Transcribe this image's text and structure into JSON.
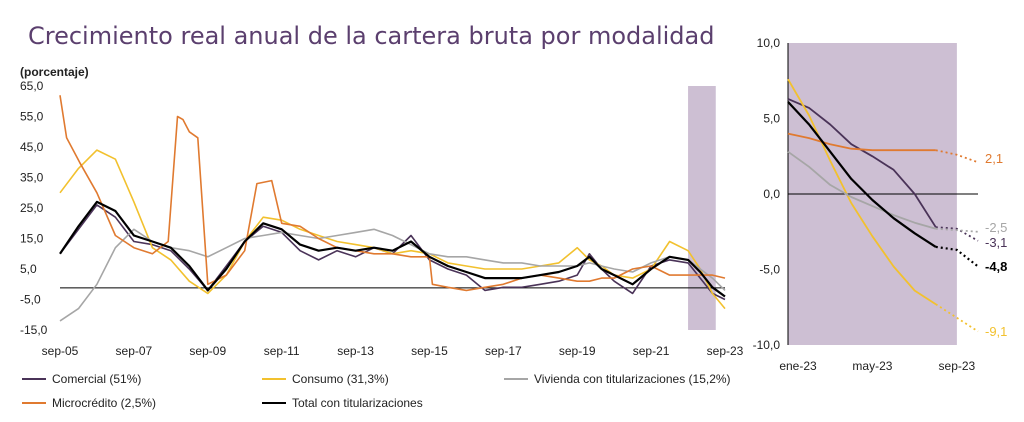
{
  "title": "Crecimiento real anual de la cartera bruta por modalidad",
  "chart_data": [
    {
      "type": "line",
      "ylabel": "(porcentaje)",
      "ylim": [
        -15,
        65
      ],
      "yticks": [
        "65,0",
        "55,0",
        "45,0",
        "35,0",
        "25,0",
        "15,0",
        "5,0",
        "-5,0",
        "-15,0"
      ],
      "xticks": [
        "sep-05",
        "sep-07",
        "sep-09",
        "sep-11",
        "sep-13",
        "sep-15",
        "sep-17",
        "sep-19",
        "sep-21",
        "sep-23"
      ],
      "xrange": [
        2005.67,
        2023.67
      ],
      "shaded_period": [
        2022.67,
        2023.42
      ],
      "series": [
        {
          "name": "Comercial (51%)",
          "color": "#4a3358",
          "x": [
            2005.67,
            2006.17,
            2006.67,
            2007.17,
            2007.67,
            2008.17,
            2008.67,
            2009.17,
            2009.67,
            2010.17,
            2010.67,
            2011.17,
            2011.67,
            2012.17,
            2012.67,
            2013.17,
            2013.67,
            2014.17,
            2014.67,
            2015.17,
            2015.67,
            2016.17,
            2016.67,
            2017.17,
            2017.67,
            2018.17,
            2018.67,
            2019.17,
            2019.67,
            2020.0,
            2020.33,
            2020.67,
            2021.17,
            2021.67,
            2022.17,
            2022.67,
            2023.0,
            2023.33,
            2023.67
          ],
          "y": [
            10,
            18,
            26,
            22,
            14,
            13,
            11,
            5,
            -2,
            6,
            14,
            19,
            17,
            11,
            8,
            11,
            9,
            12,
            10,
            16,
            8,
            5,
            3,
            -2,
            -1,
            -1,
            0,
            1,
            3,
            10,
            5,
            1,
            -3,
            6,
            8,
            7,
            2,
            -3,
            -5
          ]
        },
        {
          "name": "Consumo (31,3%)",
          "color": "#f2c12e",
          "x": [
            2005.67,
            2006.17,
            2006.67,
            2007.17,
            2007.67,
            2008.17,
            2008.67,
            2009.17,
            2009.67,
            2010.17,
            2010.67,
            2011.17,
            2011.67,
            2012.17,
            2012.67,
            2013.17,
            2013.67,
            2014.17,
            2014.67,
            2015.17,
            2015.67,
            2016.17,
            2016.67,
            2017.17,
            2017.67,
            2018.17,
            2018.67,
            2019.17,
            2019.67,
            2020.0,
            2020.33,
            2020.67,
            2021.17,
            2021.67,
            2022.17,
            2022.67,
            2023.0,
            2023.33,
            2023.67
          ],
          "y": [
            30,
            38,
            44,
            41,
            27,
            12,
            8,
            1,
            -3,
            3,
            14,
            22,
            21,
            18,
            16,
            14,
            13,
            12,
            10,
            11,
            10,
            7,
            6,
            5,
            5,
            5,
            6,
            7,
            12,
            8,
            6,
            3,
            2,
            5,
            14,
            11,
            5,
            -3,
            -8
          ]
        },
        {
          "name": "Vivienda con titularizaciones (15,2%)",
          "color": "#a6a6a6",
          "x": [
            2005.67,
            2006.17,
            2006.67,
            2007.17,
            2007.67,
            2008.17,
            2008.67,
            2009.17,
            2009.67,
            2010.17,
            2010.67,
            2011.17,
            2011.67,
            2012.17,
            2012.67,
            2013.17,
            2013.67,
            2014.17,
            2014.67,
            2015.17,
            2015.67,
            2016.17,
            2016.67,
            2017.17,
            2017.67,
            2018.17,
            2018.67,
            2019.17,
            2019.67,
            2020.0,
            2020.33,
            2020.67,
            2021.17,
            2021.67,
            2022.17,
            2022.67,
            2023.0,
            2023.33,
            2023.67
          ],
          "y": [
            -12,
            -8,
            0,
            12,
            18,
            14,
            12,
            11,
            9,
            12,
            15,
            16,
            17,
            16,
            15,
            16,
            17,
            18,
            16,
            13,
            10,
            9,
            9,
            8,
            7,
            7,
            6,
            6,
            6,
            7,
            6,
            5,
            4,
            7,
            9,
            8,
            5,
            2,
            -2
          ]
        },
        {
          "name": "Microcrédito (2,5%)",
          "color": "#e07a30",
          "x": [
            2005.67,
            2005.85,
            2006.2,
            2006.67,
            2007.17,
            2007.67,
            2008.17,
            2008.6,
            2008.85,
            2009.0,
            2009.17,
            2009.4,
            2009.67,
            2010.17,
            2010.67,
            2011.0,
            2011.4,
            2011.67,
            2012.17,
            2012.67,
            2013.17,
            2013.67,
            2014.17,
            2014.67,
            2015.17,
            2015.67,
            2015.75,
            2016.17,
            2016.67,
            2017.17,
            2017.67,
            2018.17,
            2018.67,
            2019.17,
            2019.67,
            2020.0,
            2020.33,
            2020.67,
            2021.17,
            2021.67,
            2022.17,
            2022.67,
            2023.0,
            2023.33,
            2023.67
          ],
          "y": [
            62,
            48,
            40,
            30,
            16,
            12,
            10,
            14,
            55,
            54,
            50,
            48,
            0,
            3,
            11,
            33,
            34,
            20,
            19,
            15,
            12,
            11,
            10,
            10,
            9,
            9,
            0,
            -1,
            -2,
            -1,
            0,
            2,
            3,
            2,
            1,
            1,
            2,
            2,
            5,
            6,
            3,
            3,
            3,
            3,
            2
          ]
        },
        {
          "name": "Total con titularizaciones",
          "color": "#000000",
          "x": [
            2005.67,
            2006.17,
            2006.67,
            2007.17,
            2007.67,
            2008.17,
            2008.67,
            2009.17,
            2009.67,
            2010.17,
            2010.67,
            2011.17,
            2011.67,
            2012.17,
            2012.67,
            2013.17,
            2013.67,
            2014.17,
            2014.67,
            2015.17,
            2015.67,
            2016.17,
            2016.67,
            2017.17,
            2017.67,
            2018.17,
            2018.67,
            2019.17,
            2019.67,
            2020.0,
            2020.33,
            2020.67,
            2021.17,
            2021.67,
            2022.17,
            2022.67,
            2023.0,
            2023.33,
            2023.67
          ],
          "y": [
            10,
            19,
            27,
            24,
            16,
            14,
            12,
            6,
            -2,
            5,
            14,
            20,
            18,
            13,
            11,
            12,
            11,
            12,
            11,
            14,
            9,
            6,
            4,
            2,
            2,
            2,
            3,
            4,
            6,
            9,
            5,
            3,
            0,
            5,
            9,
            8,
            4,
            -1,
            -4
          ]
        }
      ]
    },
    {
      "type": "line",
      "ylim": [
        -10,
        10
      ],
      "yticks": [
        "10,0",
        "5,0",
        "0,0",
        "-5,0",
        "-10,0"
      ],
      "xticks": [
        "ene-23",
        "may-23",
        "sep-23"
      ],
      "xrange": [
        0,
        9
      ],
      "shaded_period": [
        0,
        8
      ],
      "end_labels": [
        {
          "text": "2,1",
          "value": 2.1,
          "color": "#e07a30"
        },
        {
          "text": "-2,5",
          "value": -2.5,
          "color": "#a6a6a6"
        },
        {
          "text": "-3,1",
          "value": -3.1,
          "color": "#4a3358"
        },
        {
          "text": "-4,8",
          "value": -4.8,
          "color": "#000000"
        },
        {
          "text": "-9,1",
          "value": -9.1,
          "color": "#f2c12e"
        }
      ],
      "series": [
        {
          "name": "Comercial (51%)",
          "color": "#4a3358",
          "solid_x": [
            0,
            1,
            2,
            3,
            4,
            5,
            6,
            7
          ],
          "solid_y": [
            6.3,
            5.7,
            4.6,
            3.3,
            2.5,
            1.6,
            0.0,
            -2.2
          ],
          "dotted_x": [
            7,
            8,
            9
          ],
          "dotted_y": [
            -2.2,
            -2.3,
            -3.1
          ]
        },
        {
          "name": "Consumo (31,3%)",
          "color": "#f2c12e",
          "solid_x": [
            0,
            1,
            2,
            3,
            4,
            5,
            6,
            7
          ],
          "solid_y": [
            7.6,
            5.2,
            2.2,
            -0.6,
            -2.8,
            -4.8,
            -6.4,
            -7.3
          ],
          "dotted_x": [
            7,
            8,
            9
          ],
          "dotted_y": [
            -7.3,
            -8.2,
            -9.1
          ]
        },
        {
          "name": "Vivienda con titularizaciones (15,2%)",
          "color": "#a6a6a6",
          "solid_x": [
            0,
            1,
            2,
            3,
            4,
            5,
            6,
            7
          ],
          "solid_y": [
            2.8,
            1.8,
            0.6,
            -0.2,
            -0.8,
            -1.4,
            -1.9,
            -2.3
          ],
          "dotted_x": [
            7,
            8,
            9
          ],
          "dotted_y": [
            -2.3,
            -2.4,
            -2.5
          ]
        },
        {
          "name": "Microcrédito (2,5%)",
          "color": "#e07a30",
          "solid_x": [
            0,
            1,
            2,
            3,
            4,
            5,
            6,
            7
          ],
          "solid_y": [
            4.0,
            3.7,
            3.3,
            3.0,
            2.9,
            2.9,
            2.9,
            2.9
          ],
          "dotted_x": [
            7,
            8,
            9
          ],
          "dotted_y": [
            2.9,
            2.6,
            2.1
          ]
        },
        {
          "name": "Total con titularizaciones",
          "color": "#000000",
          "solid_x": [
            0,
            1,
            2,
            3,
            4,
            5,
            6,
            7
          ],
          "solid_y": [
            6.1,
            4.6,
            2.8,
            1.0,
            -0.4,
            -1.6,
            -2.6,
            -3.5
          ],
          "dotted_x": [
            7,
            8,
            9
          ],
          "dotted_y": [
            -3.5,
            -3.7,
            -4.8
          ]
        }
      ]
    }
  ],
  "legend": [
    {
      "label": "Comercial (51%)",
      "color": "#4a3358"
    },
    {
      "label": "Consumo (31,3%)",
      "color": "#f2c12e"
    },
    {
      "label": "Vivienda con titularizaciones (15,2%)",
      "color": "#a6a6a6"
    },
    {
      "label": "Microcrédito (2,5%)",
      "color": "#e07a30"
    },
    {
      "label": "Total con titularizaciones",
      "color": "#000000"
    }
  ],
  "colors": {
    "shade": "#cdbfd3",
    "title": "#5b3f6e"
  }
}
